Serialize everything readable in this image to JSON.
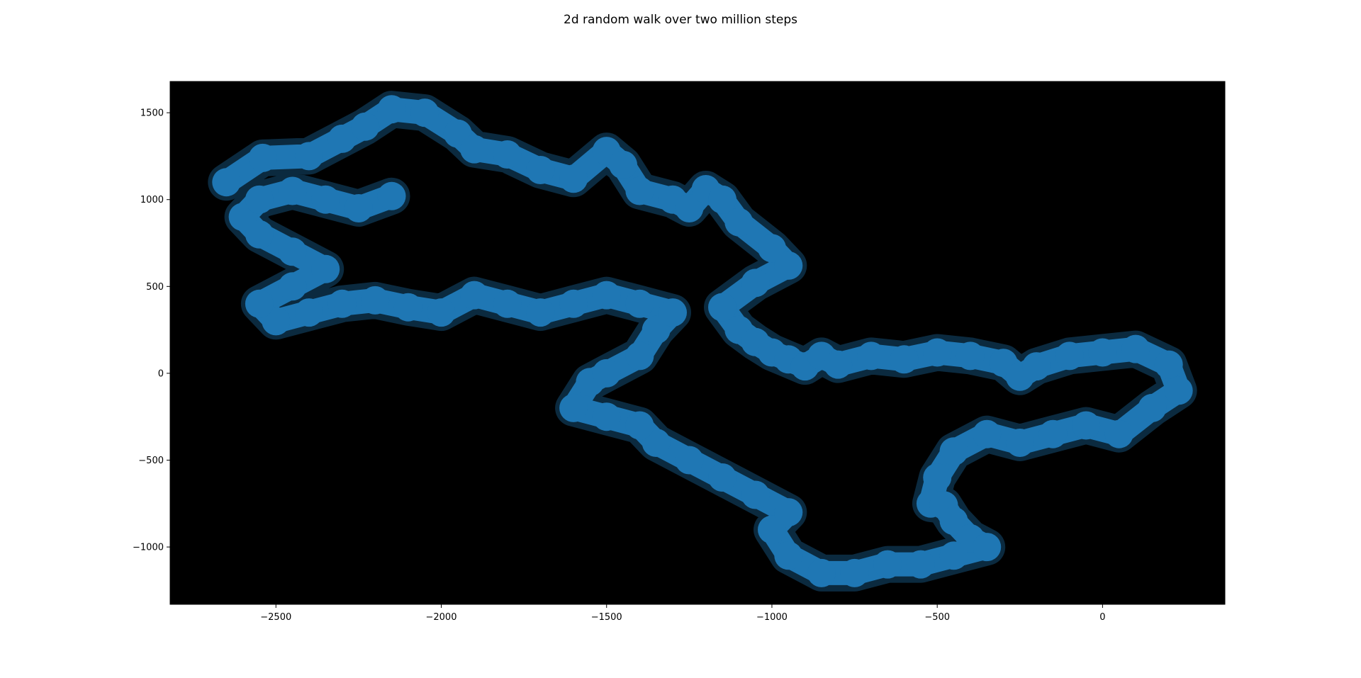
{
  "chart_data": {
    "type": "line",
    "title": "2d random walk over two million steps",
    "xlabel": "",
    "ylabel": "",
    "xlim": [
      -2820,
      370
    ],
    "ylim": [
      -1330,
      1680
    ],
    "xticks": [
      -2500,
      -2000,
      -1500,
      -1000,
      -500,
      0
    ],
    "xtick_labels": [
      "−2500",
      "−2000",
      "−1500",
      "−1000",
      "−500",
      "0"
    ],
    "yticks": [
      -1000,
      -500,
      0,
      500,
      1000,
      1500
    ],
    "ytick_labels": [
      "−1000",
      "−500",
      "0",
      "500",
      "1000",
      "1500"
    ],
    "background": "#000000",
    "series": [
      {
        "color": "#1f77b4",
        "x": [
          -2650,
          -2540,
          -2400,
          -2300,
          -2230,
          -2150,
          -2050,
          -1950,
          -1900,
          -1800,
          -1700,
          -1600,
          -1500,
          -1450,
          -1400,
          -1300,
          -1250,
          -1200,
          -1150,
          -1100,
          -1000,
          -950,
          -1050,
          -1150,
          -1100,
          -1050,
          -1000,
          -950,
          -900,
          -850,
          -800,
          -700,
          -600,
          -500,
          -400,
          -300,
          -250,
          -200,
          -100,
          0,
          100,
          200,
          230,
          150,
          50,
          -50,
          -150,
          -250,
          -350,
          -450,
          -500,
          -520,
          -480,
          -450,
          -400,
          -350,
          -450,
          -550,
          -650,
          -750,
          -850,
          -950,
          -1000,
          -950,
          -1050,
          -1150,
          -1250,
          -1350,
          -1400,
          -1500,
          -1600,
          -1550,
          -1500,
          -1400,
          -1350,
          -1300,
          -1400,
          -1500,
          -1600,
          -1700,
          -1800,
          -1900,
          -2000,
          -2100,
          -2200,
          -2300,
          -2400,
          -2500,
          -2550,
          -2450,
          -2350,
          -2450,
          -2550,
          -2600,
          -2550,
          -2450,
          -2350,
          -2250,
          -2150
        ],
        "y": [
          1100,
          1240,
          1250,
          1350,
          1420,
          1520,
          1500,
          1380,
          1290,
          1260,
          1170,
          1120,
          1280,
          1200,
          1050,
          1000,
          950,
          1060,
          1000,
          870,
          720,
          620,
          520,
          380,
          250,
          180,
          120,
          80,
          40,
          100,
          50,
          100,
          80,
          120,
          100,
          60,
          -20,
          40,
          100,
          120,
          140,
          50,
          -100,
          -200,
          -350,
          -300,
          -350,
          -400,
          -350,
          -450,
          -600,
          -750,
          -760,
          -850,
          -950,
          -1000,
          -1050,
          -1100,
          -1100,
          -1150,
          -1150,
          -1050,
          -900,
          -800,
          -700,
          -600,
          -500,
          -400,
          -300,
          -250,
          -200,
          -50,
          0,
          100,
          250,
          350,
          400,
          450,
          400,
          350,
          400,
          450,
          350,
          380,
          420,
          400,
          350,
          300,
          400,
          500,
          600,
          700,
          800,
          900,
          1000,
          1050,
          1000,
          950,
          1020
        ]
      }
    ]
  }
}
